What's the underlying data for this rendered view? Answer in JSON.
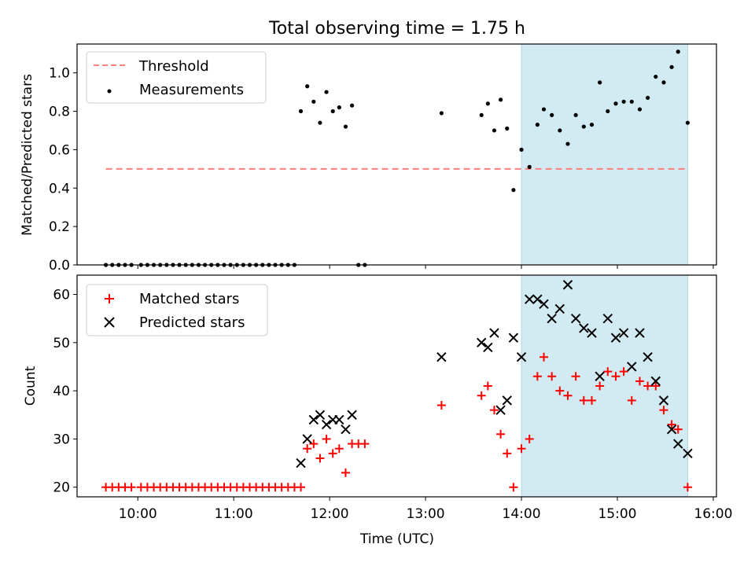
{
  "title": "Total observing time = 1.75 h",
  "colors": {
    "shade": "#add8e6",
    "threshold": "#ff7f7f",
    "matched": "#ff0000",
    "predicted": "#000000",
    "measurement": "#000000"
  },
  "chart_data": [
    {
      "type": "scatter",
      "ylabel": "Matched/Predicted stars",
      "xlabel": "",
      "xlim": [
        "09:22",
        "16:02"
      ],
      "ylim": [
        0,
        1.15
      ],
      "y_ticks": [
        "0.0",
        "0.2",
        "0.4",
        "0.6",
        "0.8",
        "1.0"
      ],
      "shaded_x": [
        "14:00",
        "15:44"
      ],
      "grid": false,
      "legend_position": "top-left",
      "legend": [
        "Threshold",
        "Measurements"
      ],
      "threshold": {
        "name": "Threshold",
        "y": 0.5,
        "x": [
          "09:40",
          "15:44"
        ]
      },
      "series": [
        {
          "name": "Measurements",
          "points": [
            [
              "09:40",
              0
            ],
            [
              "09:44",
              0
            ],
            [
              "09:48",
              0
            ],
            [
              "09:52",
              0
            ],
            [
              "09:56",
              0
            ],
            [
              "10:02",
              0
            ],
            [
              "10:06",
              0
            ],
            [
              "10:10",
              0
            ],
            [
              "10:14",
              0
            ],
            [
              "10:18",
              0
            ],
            [
              "10:22",
              0
            ],
            [
              "10:26",
              0
            ],
            [
              "10:30",
              0
            ],
            [
              "10:34",
              0
            ],
            [
              "10:38",
              0
            ],
            [
              "10:42",
              0
            ],
            [
              "10:46",
              0
            ],
            [
              "10:50",
              0
            ],
            [
              "10:54",
              0
            ],
            [
              "10:58",
              0
            ],
            [
              "11:02",
              0
            ],
            [
              "11:06",
              0
            ],
            [
              "11:10",
              0
            ],
            [
              "11:14",
              0
            ],
            [
              "11:18",
              0
            ],
            [
              "11:22",
              0
            ],
            [
              "11:26",
              0
            ],
            [
              "11:30",
              0
            ],
            [
              "11:34",
              0
            ],
            [
              "11:38",
              0
            ],
            [
              "11:42",
              0.8
            ],
            [
              "11:46",
              0.93
            ],
            [
              "11:50",
              0.85
            ],
            [
              "11:54",
              0.74
            ],
            [
              "11:58",
              0.9
            ],
            [
              "12:02",
              0.8
            ],
            [
              "12:06",
              0.82
            ],
            [
              "12:10",
              0.72
            ],
            [
              "12:14",
              0.83
            ],
            [
              "12:18",
              0
            ],
            [
              "12:22",
              0
            ],
            [
              "13:10",
              0.79
            ],
            [
              "13:35",
              0.78
            ],
            [
              "13:39",
              0.84
            ],
            [
              "13:43",
              0.7
            ],
            [
              "13:47",
              0.86
            ],
            [
              "13:51",
              0.71
            ],
            [
              "13:55",
              0.39
            ],
            [
              "14:00",
              0.6
            ],
            [
              "14:05",
              0.51
            ],
            [
              "14:10",
              0.73
            ],
            [
              "14:14",
              0.81
            ],
            [
              "14:19",
              0.78
            ],
            [
              "14:24",
              0.7
            ],
            [
              "14:29",
              0.63
            ],
            [
              "14:34",
              0.78
            ],
            [
              "14:39",
              0.72
            ],
            [
              "14:44",
              0.73
            ],
            [
              "14:49",
              0.95
            ],
            [
              "14:54",
              0.8
            ],
            [
              "14:59",
              0.84
            ],
            [
              "15:04",
              0.85
            ],
            [
              "15:09",
              0.85
            ],
            [
              "15:14",
              0.81
            ],
            [
              "15:19",
              0.87
            ],
            [
              "15:24",
              0.98
            ],
            [
              "15:29",
              0.95
            ],
            [
              "15:34",
              1.03
            ],
            [
              "15:38",
              1.11
            ],
            [
              "15:44",
              0.74
            ]
          ]
        }
      ]
    },
    {
      "type": "scatter",
      "ylabel": "Count",
      "xlabel": "Time (UTC)",
      "xlim": [
        "09:22",
        "16:02"
      ],
      "ylim": [
        18,
        64
      ],
      "y_ticks": [
        "20",
        "30",
        "40",
        "50",
        "60"
      ],
      "x_ticks": [
        "10:00",
        "11:00",
        "12:00",
        "13:00",
        "14:00",
        "15:00",
        "16:00"
      ],
      "shaded_x": [
        "14:00",
        "15:44"
      ],
      "grid": false,
      "legend_position": "top-left",
      "legend": [
        "Matched stars",
        "Predicted stars"
      ],
      "series": [
        {
          "name": "Matched stars",
          "marker": "plus",
          "points": [
            [
              "09:40",
              20
            ],
            [
              "09:44",
              20
            ],
            [
              "09:48",
              20
            ],
            [
              "09:52",
              20
            ],
            [
              "09:56",
              20
            ],
            [
              "10:02",
              20
            ],
            [
              "10:06",
              20
            ],
            [
              "10:10",
              20
            ],
            [
              "10:14",
              20
            ],
            [
              "10:18",
              20
            ],
            [
              "10:22",
              20
            ],
            [
              "10:26",
              20
            ],
            [
              "10:30",
              20
            ],
            [
              "10:34",
              20
            ],
            [
              "10:38",
              20
            ],
            [
              "10:42",
              20
            ],
            [
              "10:46",
              20
            ],
            [
              "10:50",
              20
            ],
            [
              "10:54",
              20
            ],
            [
              "10:58",
              20
            ],
            [
              "11:02",
              20
            ],
            [
              "11:06",
              20
            ],
            [
              "11:10",
              20
            ],
            [
              "11:14",
              20
            ],
            [
              "11:18",
              20
            ],
            [
              "11:22",
              20
            ],
            [
              "11:26",
              20
            ],
            [
              "11:30",
              20
            ],
            [
              "11:34",
              20
            ],
            [
              "11:38",
              20
            ],
            [
              "11:42",
              20
            ],
            [
              "11:46",
              28
            ],
            [
              "11:50",
              29
            ],
            [
              "11:54",
              26
            ],
            [
              "11:58",
              30
            ],
            [
              "12:02",
              27
            ],
            [
              "12:06",
              28
            ],
            [
              "12:10",
              23
            ],
            [
              "12:14",
              29
            ],
            [
              "12:18",
              29
            ],
            [
              "12:22",
              29
            ],
            [
              "13:10",
              37
            ],
            [
              "13:35",
              39
            ],
            [
              "13:39",
              41
            ],
            [
              "13:43",
              36
            ],
            [
              "13:47",
              31
            ],
            [
              "13:51",
              27
            ],
            [
              "13:55",
              20
            ],
            [
              "14:00",
              28
            ],
            [
              "14:05",
              30
            ],
            [
              "14:10",
              43
            ],
            [
              "14:14",
              47
            ],
            [
              "14:19",
              43
            ],
            [
              "14:24",
              40
            ],
            [
              "14:29",
              39
            ],
            [
              "14:34",
              43
            ],
            [
              "14:39",
              38
            ],
            [
              "14:44",
              38
            ],
            [
              "14:49",
              41
            ],
            [
              "14:54",
              44
            ],
            [
              "14:59",
              43
            ],
            [
              "15:04",
              44
            ],
            [
              "15:09",
              38
            ],
            [
              "15:14",
              42
            ],
            [
              "15:19",
              41
            ],
            [
              "15:24",
              41
            ],
            [
              "15:29",
              36
            ],
            [
              "15:34",
              33
            ],
            [
              "15:38",
              32
            ],
            [
              "15:44",
              20
            ]
          ]
        },
        {
          "name": "Predicted stars",
          "marker": "x",
          "points": [
            [
              "11:42",
              25
            ],
            [
              "11:46",
              30
            ],
            [
              "11:50",
              34
            ],
            [
              "11:54",
              35
            ],
            [
              "11:58",
              33
            ],
            [
              "12:02",
              34
            ],
            [
              "12:06",
              34
            ],
            [
              "12:10",
              32
            ],
            [
              "12:14",
              35
            ],
            [
              "13:10",
              47
            ],
            [
              "13:35",
              50
            ],
            [
              "13:39",
              49
            ],
            [
              "13:43",
              52
            ],
            [
              "13:47",
              36
            ],
            [
              "13:51",
              38
            ],
            [
              "13:55",
              51
            ],
            [
              "14:00",
              47
            ],
            [
              "14:05",
              59
            ],
            [
              "14:10",
              59
            ],
            [
              "14:14",
              58
            ],
            [
              "14:19",
              55
            ],
            [
              "14:24",
              57
            ],
            [
              "14:29",
              62
            ],
            [
              "14:34",
              55
            ],
            [
              "14:39",
              53
            ],
            [
              "14:44",
              52
            ],
            [
              "14:49",
              43
            ],
            [
              "14:54",
              55
            ],
            [
              "14:59",
              51
            ],
            [
              "15:04",
              52
            ],
            [
              "15:09",
              45
            ],
            [
              "15:14",
              52
            ],
            [
              "15:19",
              47
            ],
            [
              "15:24",
              42
            ],
            [
              "15:29",
              38
            ],
            [
              "15:34",
              32
            ],
            [
              "15:38",
              29
            ],
            [
              "15:44",
              27
            ]
          ]
        }
      ]
    }
  ]
}
